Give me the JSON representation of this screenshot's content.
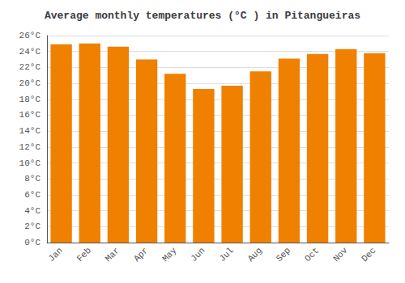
{
  "chart_data": {
    "type": "bar",
    "title": "Average monthly temperatures (°C ) in Pitangueiras",
    "categories": [
      "Jan",
      "Feb",
      "Mar",
      "Apr",
      "May",
      "Jun",
      "Jul",
      "Aug",
      "Sep",
      "Oct",
      "Nov",
      "Dec"
    ],
    "values": [
      24.9,
      25.0,
      24.6,
      23.0,
      21.2,
      19.3,
      19.7,
      21.5,
      23.1,
      23.7,
      24.3,
      23.8
    ],
    "color": "#F08000",
    "ylim": [
      0,
      26
    ],
    "yticks": [
      {
        "value": 0,
        "label": "0°C"
      },
      {
        "value": 2,
        "label": "2°C"
      },
      {
        "value": 4,
        "label": "4°C"
      },
      {
        "value": 6,
        "label": "6°C"
      },
      {
        "value": 8,
        "label": "8°C"
      },
      {
        "value": 10,
        "label": "10°C"
      },
      {
        "value": 12,
        "label": "12°C"
      },
      {
        "value": 14,
        "label": "14°C"
      },
      {
        "value": 16,
        "label": "16°C"
      },
      {
        "value": 18,
        "label": "18°C"
      },
      {
        "value": 20,
        "label": "20°C"
      },
      {
        "value": 22,
        "label": "22°C"
      },
      {
        "value": 24,
        "label": "24°C"
      },
      {
        "value": 26,
        "label": "26°C"
      }
    ],
    "grid": true
  }
}
